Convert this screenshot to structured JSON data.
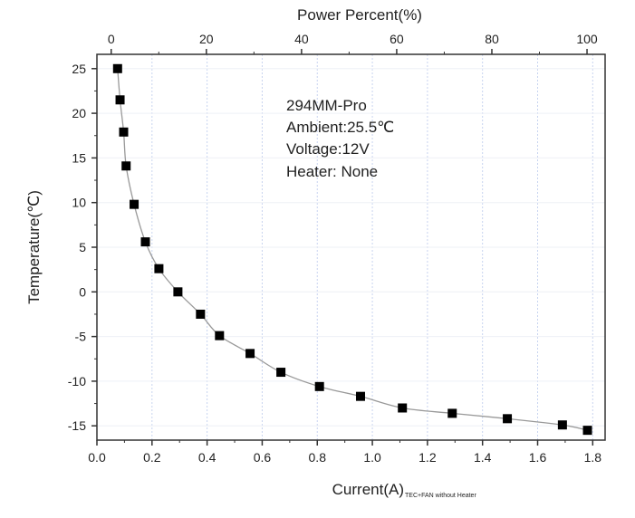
{
  "chart_data": {
    "type": "line",
    "xlabel": "Current(A)",
    "xlabel_subscript": "TEC+FAN without Heater",
    "ylabel": "Temperature(℃)",
    "top_axis_label": "Power Percent(%)",
    "xlim": [
      0,
      1.845
    ],
    "ylim": [
      -16.6,
      26.6
    ],
    "top_axis_lim": [
      -3,
      103.8
    ],
    "x_ticks": [
      "0.0",
      "0.2",
      "0.4",
      "0.6",
      "0.8",
      "1.0",
      "1.2",
      "1.4",
      "1.6",
      "1.8"
    ],
    "y_ticks": [
      "25",
      "20",
      "15",
      "10",
      "5",
      "0",
      "-5",
      "-10",
      "-15"
    ],
    "top_ticks": [
      "0",
      "20",
      "40",
      "60",
      "80",
      "100"
    ],
    "grid": true,
    "marker": "square",
    "series_color": "#000000",
    "line_color": "#999999",
    "grid_color": "#c8d4f0",
    "annotations": [
      "294MM-Pro",
      "Ambient:25.5℃",
      "Voltage:12V",
      "Heater: None"
    ],
    "series": [
      {
        "x": [
          0.075,
          0.084,
          0.097,
          0.106,
          0.135,
          0.176,
          0.225,
          0.294,
          0.376,
          0.445,
          0.556,
          0.668,
          0.808,
          0.957,
          1.109,
          1.29,
          1.49,
          1.69,
          1.781
        ],
        "y": [
          25.0,
          21.5,
          17.9,
          14.1,
          9.8,
          5.6,
          2.6,
          0.0,
          -2.5,
          -4.9,
          -6.9,
          -9.0,
          -10.6,
          -11.7,
          -13.0,
          -13.6,
          -14.2,
          -14.9,
          -15.5
        ]
      }
    ]
  }
}
